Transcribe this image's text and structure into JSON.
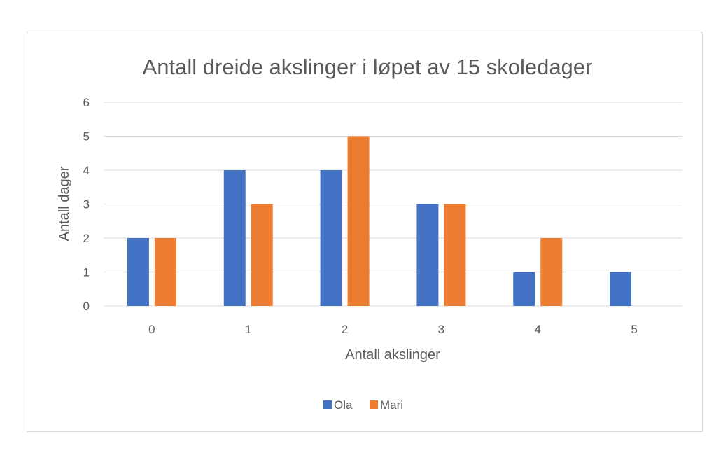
{
  "chart_data": {
    "type": "bar",
    "title": "Antall dreide akslinger i løpet av 15 skoledager",
    "xlabel": "Antall akslinger",
    "ylabel": "Antall dager",
    "categories": [
      "0",
      "1",
      "2",
      "3",
      "4",
      "5"
    ],
    "series": [
      {
        "name": "Ola",
        "values": [
          2,
          4,
          4,
          3,
          1,
          1
        ],
        "color": "#4472c4"
      },
      {
        "name": "Mari",
        "values": [
          2,
          3,
          5,
          3,
          2,
          0
        ],
        "color": "#ed7d31"
      }
    ],
    "ylim": [
      0,
      6
    ],
    "yticks": [
      "0",
      "1",
      "2",
      "3",
      "4",
      "5",
      "6"
    ],
    "grid": true,
    "legend_position": "bottom"
  }
}
